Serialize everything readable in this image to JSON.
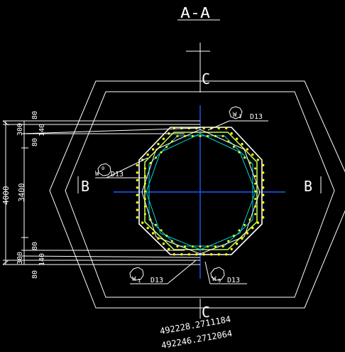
{
  "drawing": {
    "section_title": "A-A",
    "section_marks": {
      "left": "B",
      "right": "B",
      "top": "C",
      "bottom": "C"
    },
    "rebar_callouts": [
      {
        "num": "1",
        "prefix": "W",
        "size": "D13"
      },
      {
        "num": "0",
        "prefix": "W",
        "size": "D13"
      },
      {
        "num": "1",
        "prefix": "W",
        "size": "D13"
      },
      {
        "num": "9",
        "prefix": "W",
        "size": "D13"
      }
    ],
    "dimensions": {
      "overall": "4000",
      "inner": "3400",
      "top": [
        "300",
        "80",
        "80",
        "140"
      ],
      "bottom": [
        "300",
        "80",
        "80",
        "140"
      ]
    },
    "coordinates": [
      "492228.2711184",
      "492246.2712064"
    ]
  },
  "colors": {
    "background": "#000000",
    "lines": "#ffffff",
    "centerline": "#1a5cff",
    "ring_cyan": "#00d8d8",
    "ring_green": "#b9f55a",
    "rebar_dots": "#ffff00"
  }
}
